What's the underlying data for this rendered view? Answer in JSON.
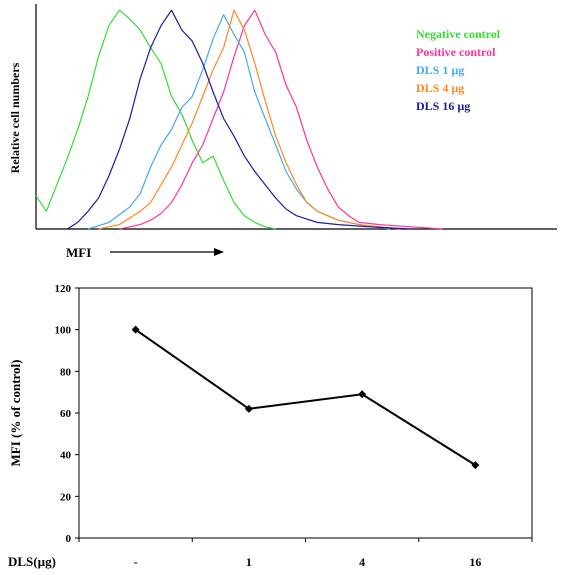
{
  "colors": {
    "negative": "#33dd33",
    "positive": "#ff3399",
    "dls1": "#44aaee",
    "dls4": "#ff8822",
    "dls16": "#1a1aaa",
    "line": "#000000"
  },
  "chart_data": [
    {
      "type": "line",
      "subtype": "flow-cytometry-histogram",
      "title": "",
      "xlabel": "MFI",
      "ylabel": "Relative cell numbers",
      "xscale": "log",
      "xlim": [
        0,
        1
      ],
      "ylim": [
        0,
        1
      ],
      "legend_placement": "top-right",
      "grid": false,
      "series": [
        {
          "name": "Negative control",
          "color": "#33dd33",
          "x": [
            0.0,
            0.02,
            0.04,
            0.06,
            0.08,
            0.1,
            0.12,
            0.14,
            0.16,
            0.18,
            0.2,
            0.22,
            0.24,
            0.26,
            0.28,
            0.3,
            0.32,
            0.34,
            0.36,
            0.38,
            0.4,
            0.42,
            0.44,
            0.46
          ],
          "y": [
            0.15,
            0.08,
            0.2,
            0.32,
            0.45,
            0.6,
            0.78,
            0.92,
            0.99,
            0.95,
            0.9,
            0.82,
            0.75,
            0.6,
            0.52,
            0.4,
            0.3,
            0.33,
            0.22,
            0.12,
            0.06,
            0.03,
            0.01,
            0.0
          ]
        },
        {
          "name": "Positive control",
          "color": "#ff3399",
          "x": [
            0.16,
            0.18,
            0.2,
            0.22,
            0.24,
            0.26,
            0.28,
            0.3,
            0.32,
            0.34,
            0.36,
            0.38,
            0.4,
            0.42,
            0.44,
            0.46,
            0.48,
            0.5,
            0.52,
            0.54,
            0.56,
            0.58,
            0.6,
            0.62,
            0.66,
            0.72,
            0.78
          ],
          "y": [
            0.0,
            0.01,
            0.02,
            0.04,
            0.07,
            0.12,
            0.2,
            0.3,
            0.38,
            0.5,
            0.62,
            0.78,
            0.92,
            0.99,
            0.88,
            0.8,
            0.65,
            0.55,
            0.4,
            0.28,
            0.18,
            0.1,
            0.06,
            0.03,
            0.02,
            0.01,
            0.0
          ]
        },
        {
          "name": "DLS 1 µg",
          "color": "#44aaee",
          "x": [
            0.1,
            0.14,
            0.18,
            0.2,
            0.22,
            0.24,
            0.26,
            0.28,
            0.3,
            0.32,
            0.34,
            0.36,
            0.38,
            0.4,
            0.42,
            0.44,
            0.46,
            0.48,
            0.5,
            0.52,
            0.54,
            0.58,
            0.62,
            0.68
          ],
          "y": [
            0.0,
            0.03,
            0.1,
            0.16,
            0.28,
            0.38,
            0.45,
            0.55,
            0.6,
            0.72,
            0.86,
            0.97,
            0.88,
            0.8,
            0.62,
            0.5,
            0.38,
            0.26,
            0.18,
            0.12,
            0.08,
            0.04,
            0.02,
            0.0
          ]
        },
        {
          "name": "DLS 4 µg",
          "color": "#ff8822",
          "x": [
            0.12,
            0.16,
            0.2,
            0.22,
            0.24,
            0.26,
            0.28,
            0.3,
            0.32,
            0.34,
            0.36,
            0.38,
            0.4,
            0.42,
            0.44,
            0.46,
            0.48,
            0.5,
            0.52,
            0.54,
            0.58,
            0.62,
            0.7
          ],
          "y": [
            0.0,
            0.02,
            0.08,
            0.12,
            0.2,
            0.28,
            0.38,
            0.48,
            0.6,
            0.72,
            0.82,
            0.99,
            0.9,
            0.75,
            0.58,
            0.42,
            0.3,
            0.2,
            0.12,
            0.08,
            0.04,
            0.02,
            0.0
          ]
        },
        {
          "name": "DLS 16 µg",
          "color": "#1a1aaa",
          "x": [
            0.06,
            0.08,
            0.1,
            0.12,
            0.14,
            0.16,
            0.18,
            0.2,
            0.22,
            0.24,
            0.26,
            0.28,
            0.3,
            0.32,
            0.34,
            0.36,
            0.38,
            0.4,
            0.42,
            0.44,
            0.46,
            0.48,
            0.5,
            0.54,
            0.58,
            0.64,
            0.72
          ],
          "y": [
            0.0,
            0.03,
            0.08,
            0.14,
            0.24,
            0.36,
            0.5,
            0.68,
            0.82,
            0.92,
            0.99,
            0.9,
            0.85,
            0.75,
            0.62,
            0.5,
            0.42,
            0.33,
            0.26,
            0.2,
            0.14,
            0.09,
            0.06,
            0.03,
            0.02,
            0.01,
            0.0
          ]
        }
      ]
    },
    {
      "type": "line",
      "title": "",
      "xlabel": "DLS(µg)",
      "ylabel": "MFI (% of control)",
      "categories": [
        "-",
        "1",
        "4",
        "16"
      ],
      "values": [
        100,
        62,
        69,
        35
      ],
      "ylim": [
        0,
        120
      ],
      "yticks": [
        "0",
        "20",
        "40",
        "60",
        "80",
        "100",
        "120"
      ],
      "grid": false,
      "marker": "diamond"
    }
  ]
}
